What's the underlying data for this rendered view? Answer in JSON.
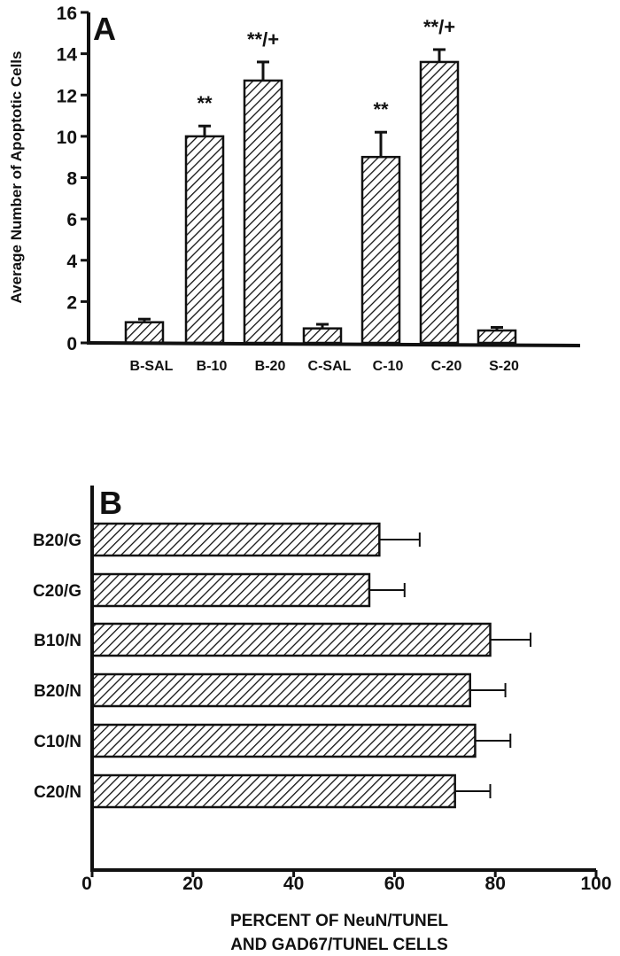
{
  "chart_data": [
    {
      "panel": "A",
      "type": "bar",
      "orientation": "vertical",
      "ylabel": "Average Number of Apoptotic Cells",
      "xlabel": "",
      "ylim": [
        0,
        16
      ],
      "yticks": [
        "0",
        "2",
        "4",
        "6",
        "8",
        "10",
        "12",
        "14",
        "16"
      ],
      "categories": [
        "B-SAL",
        "B-10",
        "B-20",
        "C-SAL",
        "C-10",
        "C-20",
        "S-20"
      ],
      "values": [
        1.0,
        10.0,
        12.7,
        0.7,
        9.0,
        13.6,
        0.6
      ],
      "error": [
        0.15,
        0.5,
        0.9,
        0.2,
        1.2,
        0.6,
        0.15
      ],
      "annotations": [
        "",
        "**",
        "**/+",
        "",
        "**",
        "**/+",
        ""
      ],
      "grid": false,
      "fill": "hatched"
    },
    {
      "panel": "B",
      "type": "bar",
      "orientation": "horizontal",
      "xlabel_lines": [
        "PERCENT OF NeuN/TUNEL",
        "AND GAD67/TUNEL CELLS"
      ],
      "ylabel": "",
      "xlim": [
        0,
        100
      ],
      "xticks": [
        "0",
        "20",
        "40",
        "60",
        "80",
        "100"
      ],
      "categories": [
        "B20/G",
        "C20/G",
        "B10/N",
        "B20/N",
        "C10/N",
        "C20/N"
      ],
      "values": [
        57,
        55,
        79,
        75,
        76,
        72
      ],
      "error": [
        8,
        7,
        8,
        7,
        7,
        7
      ],
      "grid": false,
      "fill": "hatched"
    }
  ]
}
